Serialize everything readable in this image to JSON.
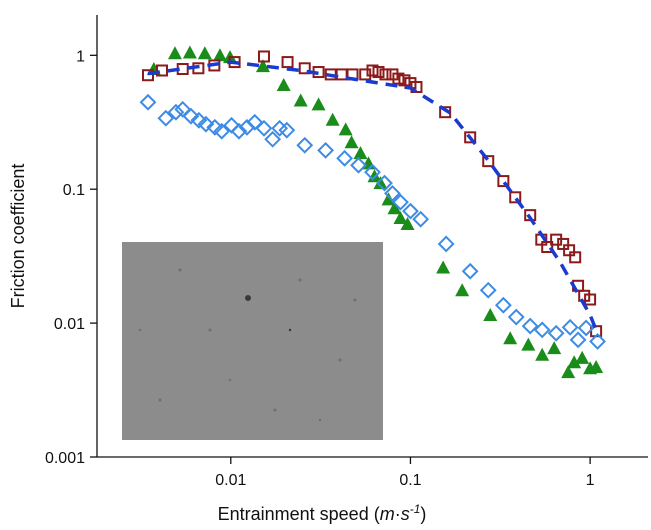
{
  "chart_data": {
    "type": "scatter",
    "x_label": [
      "Entrainment speed (",
      "m",
      "·",
      "s",
      "-1",
      ")"
    ],
    "y_label": "Friction coefficient",
    "xscale": "log",
    "yscale": "log",
    "xlim": [
      0.0018,
      2.1
    ],
    "ylim": [
      0.001,
      2
    ],
    "xticks": [
      0.01,
      0.1,
      1
    ],
    "yticks": [
      0.001,
      0.01,
      0.1,
      1
    ],
    "series": [
      {
        "color": "#1a8c1a",
        "marker": "triangle",
        "x": [
          0.00373,
          0.00489,
          0.00592,
          0.00717,
          0.0087,
          0.0099,
          0.0151,
          0.0197,
          0.0245,
          0.0308,
          0.0369,
          0.0436,
          0.047,
          0.0527,
          0.0584,
          0.0631,
          0.0681,
          0.0755,
          0.0815,
          0.088,
          0.0963,
          0.152,
          0.194,
          0.278,
          0.359,
          0.453,
          0.541,
          0.631,
          0.755,
          0.815,
          0.903,
          1,
          1.08
        ],
        "values": [
          0.79,
          1.035,
          1.05,
          1.035,
          1.0,
          0.97,
          0.83,
          0.6,
          0.46,
          0.43,
          0.33,
          0.28,
          0.224,
          0.186,
          0.156,
          0.125,
          0.111,
          0.084,
          0.072,
          0.061,
          0.055,
          0.026,
          0.0176,
          0.0115,
          0.0077,
          0.0069,
          0.0058,
          0.0065,
          0.0043,
          0.0051,
          0.0055,
          0.0046,
          0.0047
        ]
      },
      {
        "color": "#8b1a1a",
        "marker": "square",
        "x": [
          0.00346,
          0.00414,
          0.0054,
          0.0066,
          0.0081,
          0.0105,
          0.0153,
          0.0207,
          0.0258,
          0.0308,
          0.036,
          0.0414,
          0.0476,
          0.056,
          0.0615,
          0.0664,
          0.0726,
          0.0794,
          0.0857,
          0.0926,
          0.1,
          0.108,
          0.156,
          0.215,
          0.271,
          0.329,
          0.383,
          0.464,
          0.535,
          0.577,
          0.647,
          0.708,
          0.764,
          0.826,
          0.857,
          0.927,
          1,
          1.08
        ],
        "values": [
          0.71,
          0.77,
          0.79,
          0.8,
          0.84,
          0.89,
          0.98,
          0.89,
          0.8,
          0.75,
          0.72,
          0.72,
          0.72,
          0.72,
          0.77,
          0.75,
          0.72,
          0.72,
          0.67,
          0.65,
          0.62,
          0.58,
          0.376,
          0.244,
          0.162,
          0.115,
          0.087,
          0.064,
          0.042,
          0.037,
          0.042,
          0.039,
          0.035,
          0.031,
          0.019,
          0.016,
          0.015,
          0.0087
        ]
      },
      {
        "color": "#3c8ce6",
        "marker": "diamond",
        "x": [
          0.00346,
          0.00435,
          0.00495,
          0.0054,
          0.006,
          0.00664,
          0.00727,
          0.00815,
          0.0089,
          0.0101,
          0.0111,
          0.0123,
          0.0136,
          0.0153,
          0.0171,
          0.0187,
          0.0205,
          0.0258,
          0.0337,
          0.043,
          0.0514,
          0.0615,
          0.0717,
          0.0794,
          0.088,
          0.1,
          0.114,
          0.158,
          0.215,
          0.271,
          0.329,
          0.388,
          0.464,
          0.541,
          0.647,
          0.774,
          0.857,
          0.95,
          1.1
        ],
        "values": [
          0.446,
          0.339,
          0.376,
          0.395,
          0.351,
          0.327,
          0.306,
          0.29,
          0.271,
          0.3,
          0.271,
          0.29,
          0.316,
          0.285,
          0.236,
          0.285,
          0.276,
          0.213,
          0.195,
          0.17,
          0.151,
          0.134,
          0.111,
          0.093,
          0.08,
          0.0686,
          0.0597,
          0.039,
          0.0244,
          0.0176,
          0.0136,
          0.0111,
          0.0095,
          0.0089,
          0.0084,
          0.0093,
          0.0075,
          0.0092,
          0.0073
        ]
      },
      {
        "color": "#1a3ad0",
        "marker": "dashed-line",
        "x": [
          0.00346,
          0.01,
          0.0245,
          0.0464,
          0.1,
          0.167,
          0.271,
          0.464,
          0.681,
          1,
          1.11
        ],
        "values": [
          0.73,
          0.89,
          0.77,
          0.67,
          0.57,
          0.37,
          0.164,
          0.061,
          0.0285,
          0.0115,
          0.0081
        ]
      }
    ]
  }
}
